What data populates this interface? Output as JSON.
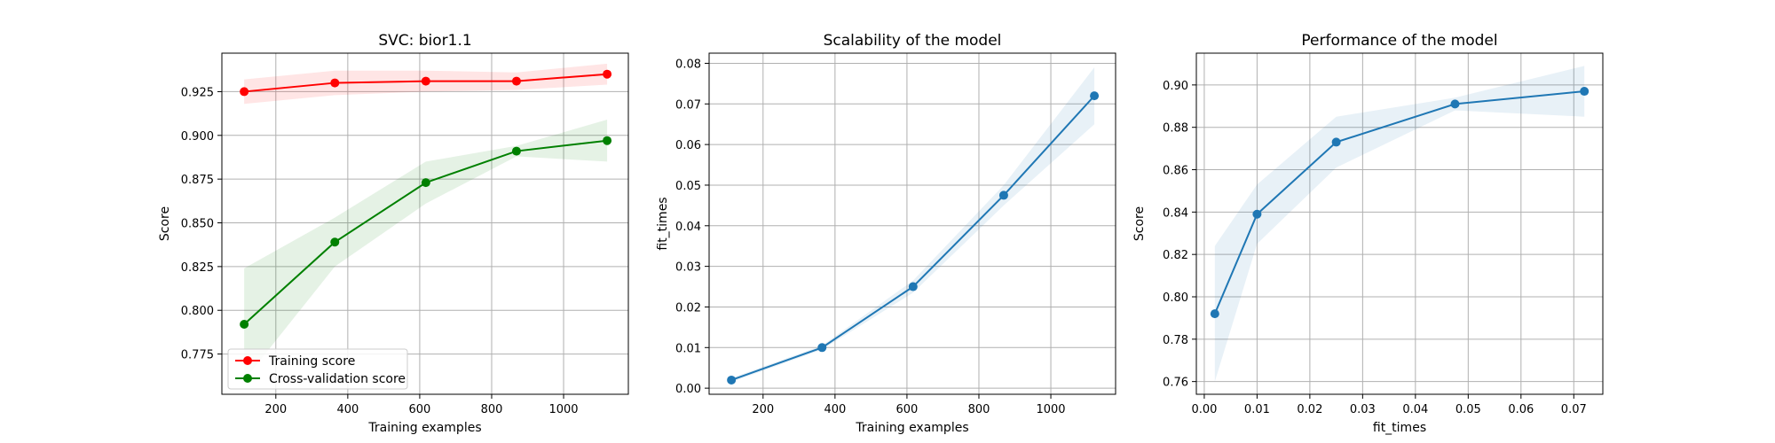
{
  "chart_data": [
    {
      "type": "line",
      "title": "SVC: bior1.1",
      "xlabel": "Training examples",
      "ylabel": "Score",
      "xlim": [
        50,
        1180
      ],
      "ylim": [
        0.752,
        0.947
      ],
      "xticks": [
        200,
        400,
        600,
        800,
        1000
      ],
      "xtick_labels": [
        "200",
        "400",
        "600",
        "800",
        "1000"
      ],
      "yticks": [
        0.775,
        0.8,
        0.825,
        0.85,
        0.875,
        0.9,
        0.925
      ],
      "ytick_labels": [
        "0.775",
        "0.800",
        "0.825",
        "0.850",
        "0.875",
        "0.900",
        "0.925"
      ],
      "grid": true,
      "legend": "lower-left",
      "x": [
        112,
        364,
        617,
        869,
        1121
      ],
      "series": [
        {
          "name": "Training score",
          "color": "#ff0000",
          "values": [
            0.925,
            0.93,
            0.931,
            0.931,
            0.935
          ],
          "band_lower": [
            0.918,
            0.923,
            0.925,
            0.926,
            0.929
          ],
          "band_upper": [
            0.932,
            0.937,
            0.937,
            0.936,
            0.941
          ]
        },
        {
          "name": "Cross-validation score",
          "color": "#008000",
          "values": [
            0.792,
            0.839,
            0.873,
            0.891,
            0.897
          ],
          "band_lower": [
            0.76,
            0.825,
            0.861,
            0.888,
            0.885
          ],
          "band_upper": [
            0.824,
            0.853,
            0.885,
            0.894,
            0.909
          ]
        }
      ]
    },
    {
      "type": "line",
      "title": "Scalability of the model",
      "xlabel": "Training examples",
      "ylabel": "fit_times",
      "xlim": [
        50,
        1180
      ],
      "ylim": [
        -0.0015,
        0.0825
      ],
      "xticks": [
        200,
        400,
        600,
        800,
        1000
      ],
      "xtick_labels": [
        "200",
        "400",
        "600",
        "800",
        "1000"
      ],
      "yticks": [
        0,
        0.01,
        0.02,
        0.03,
        0.04,
        0.05,
        0.06,
        0.07,
        0.08
      ],
      "ytick_labels": [
        "0.00",
        "0.01",
        "0.02",
        "0.03",
        "0.04",
        "0.05",
        "0.06",
        "0.07",
        "0.08"
      ],
      "grid": true,
      "x": [
        112,
        364,
        617,
        869,
        1121
      ],
      "series": [
        {
          "color": "#1f77b4",
          "values": [
            0.002,
            0.01,
            0.025,
            0.0475,
            0.072
          ],
          "band_lower": [
            0.0015,
            0.0095,
            0.0235,
            0.045,
            0.065
          ],
          "band_upper": [
            0.0025,
            0.0105,
            0.0265,
            0.05,
            0.079
          ]
        }
      ]
    },
    {
      "type": "line",
      "title": "Performance of the model",
      "xlabel": "fit_times",
      "ylabel": "Score",
      "xlim": [
        -0.0015,
        0.0755
      ],
      "ylim": [
        0.754,
        0.915
      ],
      "xticks": [
        0,
        0.01,
        0.02,
        0.03,
        0.04,
        0.05,
        0.06,
        0.07
      ],
      "xtick_labels": [
        "0.00",
        "0.01",
        "0.02",
        "0.03",
        "0.04",
        "0.05",
        "0.06",
        "0.07"
      ],
      "yticks": [
        0.76,
        0.78,
        0.8,
        0.82,
        0.84,
        0.86,
        0.88,
        0.9
      ],
      "ytick_labels": [
        "0.76",
        "0.78",
        "0.80",
        "0.82",
        "0.84",
        "0.86",
        "0.88",
        "0.90"
      ],
      "grid": true,
      "x": [
        0.002,
        0.01,
        0.025,
        0.0475,
        0.072
      ],
      "series": [
        {
          "color": "#1f77b4",
          "values": [
            0.792,
            0.839,
            0.873,
            0.891,
            0.897
          ],
          "band_lower": [
            0.76,
            0.825,
            0.861,
            0.888,
            0.885
          ],
          "band_upper": [
            0.824,
            0.853,
            0.885,
            0.894,
            0.909
          ]
        }
      ]
    }
  ]
}
